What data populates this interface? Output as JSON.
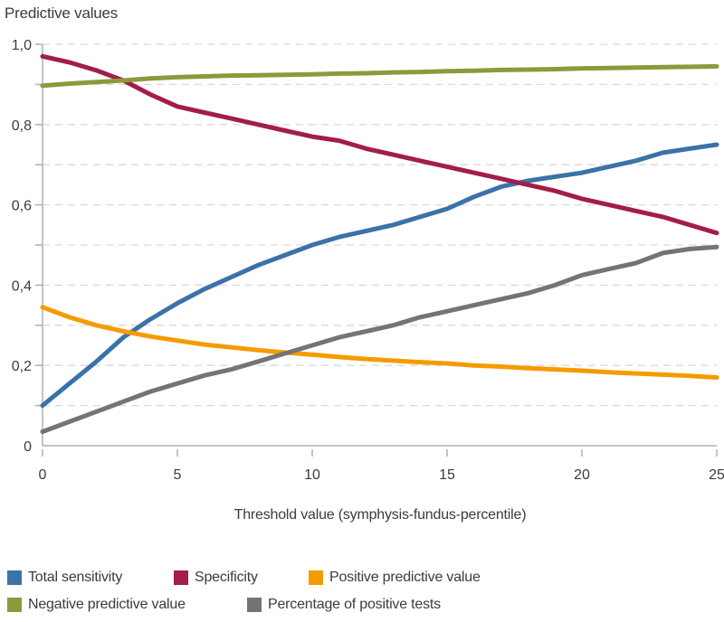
{
  "title": "Predictive values",
  "colors": {
    "accent_blue": "#3b72a8",
    "accent_red": "#a31d49",
    "accent_orange": "#f59b00",
    "accent_olive": "#8b9a3c",
    "accent_gray": "#747474",
    "grid": "#d9d9d9",
    "axis": "#b0b0b0",
    "text": "#3b3b3b"
  },
  "chart_data": {
    "type": "line",
    "title": "Predictive values",
    "xlabel": "Threshold value (symphysis-fundus-percentile)",
    "ylabel": "Predictive values",
    "xlim": [
      0,
      25
    ],
    "ylim": [
      0,
      1
    ],
    "grid": "horizontal dashed every 0.1",
    "legend_position": "bottom",
    "x_ticks": [
      0,
      5,
      10,
      15,
      20,
      25
    ],
    "y_ticks": [
      {
        "value": 0.0,
        "label": "0"
      },
      {
        "value": 0.2,
        "label": "0,2"
      },
      {
        "value": 0.4,
        "label": "0,4"
      },
      {
        "value": 0.6,
        "label": "0,6"
      },
      {
        "value": 0.8,
        "label": "0,8"
      },
      {
        "value": 1.0,
        "label": "1,0"
      }
    ],
    "y_minor_ticks": [
      0.1,
      0.2,
      0.3,
      0.4,
      0.5,
      0.6,
      0.7,
      0.8,
      0.9,
      1.0
    ],
    "y_gridlines": [
      0.1,
      0.2,
      0.3,
      0.4,
      0.5,
      0.6,
      0.7,
      0.8,
      0.9,
      1.0
    ],
    "x": [
      0,
      1,
      2,
      3,
      4,
      5,
      6,
      7,
      8,
      9,
      10,
      11,
      12,
      13,
      14,
      15,
      16,
      17,
      18,
      19,
      20,
      21,
      22,
      23,
      24,
      25
    ],
    "series": [
      {
        "name": "Total sensitivity",
        "color": "#3b72a8",
        "values": [
          0.1,
          0.155,
          0.21,
          0.27,
          0.315,
          0.355,
          0.39,
          0.42,
          0.45,
          0.475,
          0.5,
          0.52,
          0.535,
          0.55,
          0.57,
          0.59,
          0.62,
          0.645,
          0.66,
          0.67,
          0.68,
          0.695,
          0.71,
          0.73,
          0.74,
          0.75
        ]
      },
      {
        "name": "Specificity",
        "color": "#a31d49",
        "values": [
          0.97,
          0.955,
          0.935,
          0.91,
          0.875,
          0.845,
          0.83,
          0.815,
          0.8,
          0.785,
          0.77,
          0.76,
          0.74,
          0.725,
          0.71,
          0.695,
          0.68,
          0.665,
          0.65,
          0.635,
          0.615,
          0.6,
          0.585,
          0.57,
          0.55,
          0.53
        ]
      },
      {
        "name": "Positive predictive value",
        "color": "#f59b00",
        "values": [
          0.345,
          0.32,
          0.3,
          0.285,
          0.272,
          0.262,
          0.252,
          0.245,
          0.238,
          0.232,
          0.227,
          0.221,
          0.216,
          0.212,
          0.208,
          0.205,
          0.2,
          0.197,
          0.193,
          0.19,
          0.187,
          0.183,
          0.18,
          0.177,
          0.174,
          0.17
        ]
      },
      {
        "name": "Negative predictive value",
        "color": "#8b9a3c",
        "values": [
          0.897,
          0.902,
          0.906,
          0.91,
          0.915,
          0.918,
          0.92,
          0.922,
          0.923,
          0.924,
          0.925,
          0.927,
          0.928,
          0.93,
          0.931,
          0.933,
          0.934,
          0.936,
          0.937,
          0.938,
          0.94,
          0.941,
          0.942,
          0.943,
          0.944,
          0.945
        ]
      },
      {
        "name": "Percentage of positive tests",
        "color": "#747474",
        "values": [
          0.035,
          0.06,
          0.085,
          0.11,
          0.135,
          0.155,
          0.175,
          0.19,
          0.21,
          0.23,
          0.25,
          0.27,
          0.285,
          0.3,
          0.32,
          0.335,
          0.35,
          0.365,
          0.38,
          0.4,
          0.425,
          0.44,
          0.455,
          0.48,
          0.49,
          0.495
        ]
      }
    ]
  }
}
